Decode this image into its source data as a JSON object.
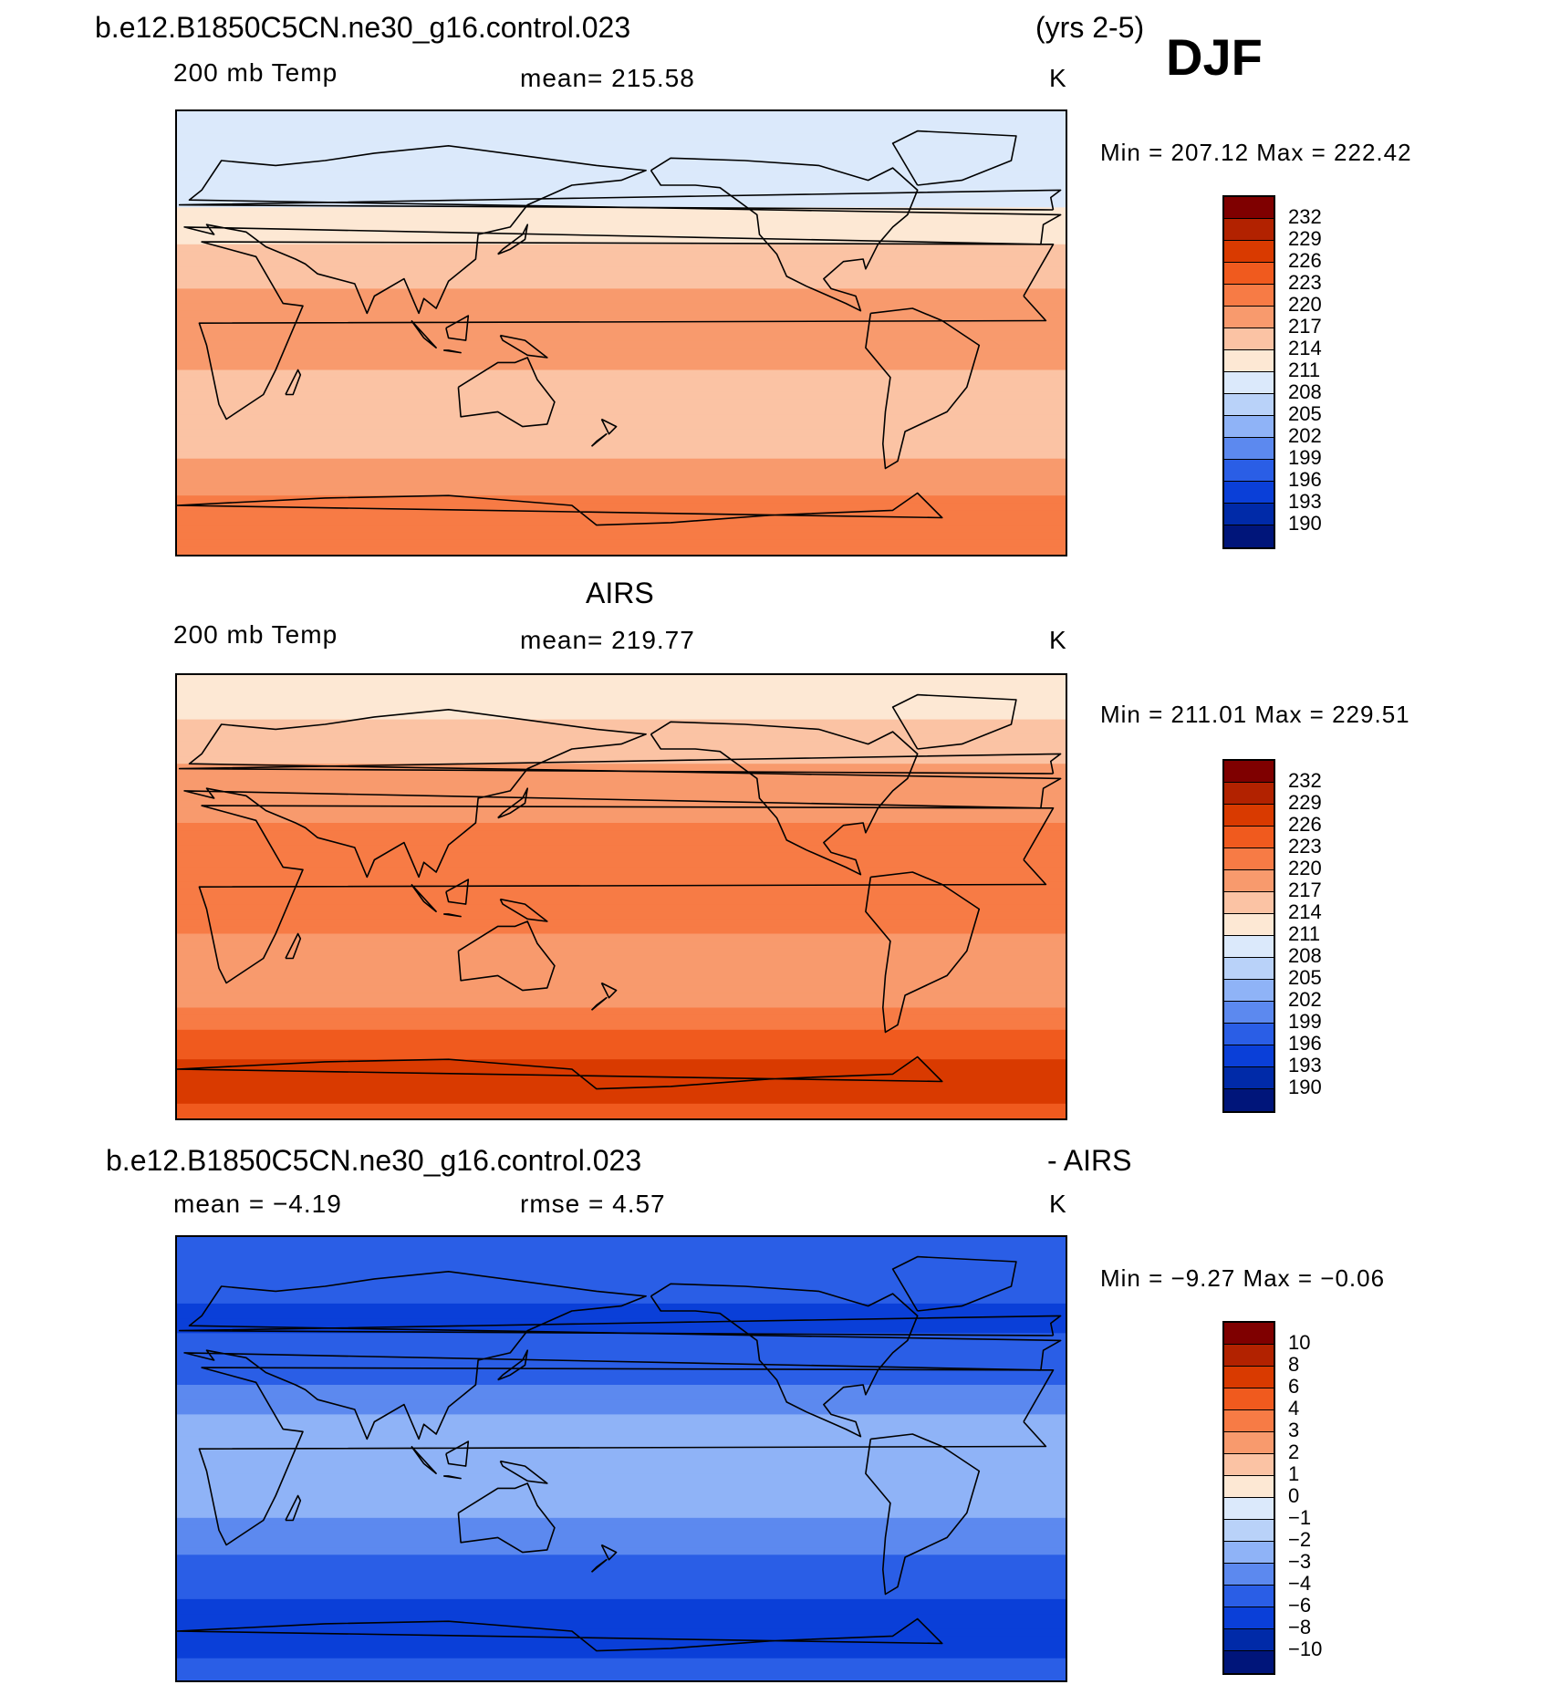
{
  "figure": {
    "case_title": "b.e12.B1850C5CN.ne30_g16.control.023",
    "years": "(yrs 2-5)",
    "season": "DJF"
  },
  "panels": [
    {
      "id": "model",
      "header": "",
      "variable": "200 mb Temp",
      "mean_text": "mean= 215.58",
      "units": "K",
      "minmax": "Min = 207.12 Max = 222.42",
      "colorbar_labels": [
        "232",
        "229",
        "226",
        "223",
        "220",
        "217",
        "214",
        "211",
        "208",
        "205",
        "202",
        "199",
        "196",
        "193",
        "190"
      ]
    },
    {
      "id": "obs",
      "header": "AIRS",
      "variable": "200 mb Temp",
      "mean_text": "mean= 219.77",
      "units": "K",
      "minmax": "Min = 211.01 Max = 229.51",
      "colorbar_labels": [
        "232",
        "229",
        "226",
        "223",
        "220",
        "217",
        "214",
        "211",
        "208",
        "205",
        "202",
        "199",
        "196",
        "193",
        "190"
      ]
    },
    {
      "id": "diff",
      "header_left": "b.e12.B1850C5CN.ne30_g16.control.023",
      "header_right": "- AIRS",
      "variable": "mean =   −4.19",
      "mean_text": "rmse =    4.57",
      "units": "K",
      "minmax": "Min =   −9.27 Max =   −0.06",
      "colorbar_labels": [
        "10",
        "8",
        "6",
        "4",
        "3",
        "2",
        "1",
        "0",
        "−1",
        "−2",
        "−3",
        "−4",
        "−6",
        "−8",
        "−10"
      ]
    }
  ],
  "colors": {
    "palette": [
      "#7f0000",
      "#b22200",
      "#d93a00",
      "#f05a1e",
      "#f77b45",
      "#f89a6d",
      "#fbc3a4",
      "#fde8d4",
      "#dbe9fb",
      "#b9d2f9",
      "#8fb3f7",
      "#5c89ef",
      "#2a5ee6",
      "#0a3fd8",
      "#002aa8",
      "#00157a"
    ]
  },
  "chart_data": [
    {
      "type": "heatmap",
      "title": "b.e12.B1850C5CN.ne30_g16.control.023 (yrs 2-5) DJF — 200 mb Temp",
      "variable": "200 mb Temp",
      "units": "K",
      "mean": 215.58,
      "min": 207.12,
      "max": 222.42,
      "contour_levels": [
        190,
        193,
        196,
        199,
        202,
        205,
        208,
        211,
        214,
        217,
        220,
        223,
        226,
        229,
        232
      ],
      "zonal_bands_k": [
        {
          "lat": 80,
          "value": 209.5
        },
        {
          "lat": 60,
          "value": 209.8
        },
        {
          "lat": 45,
          "value": 212
        },
        {
          "lat": 30,
          "value": 215.5
        },
        {
          "lat": 15,
          "value": 217.5
        },
        {
          "lat": 0,
          "value": 217.8
        },
        {
          "lat": -15,
          "value": 217.2
        },
        {
          "lat": -30,
          "value": 214
        },
        {
          "lat": -45,
          "value": 215.5
        },
        {
          "lat": -60,
          "value": 218.5
        },
        {
          "lat": -75,
          "value": 221.5
        },
        {
          "lat": -88,
          "value": 221.8
        }
      ]
    },
    {
      "type": "heatmap",
      "title": "AIRS — 200 mb Temp",
      "variable": "200 mb Temp",
      "units": "K",
      "mean": 219.77,
      "min": 211.01,
      "max": 229.51,
      "contour_levels": [
        190,
        193,
        196,
        199,
        202,
        205,
        208,
        211,
        214,
        217,
        220,
        223,
        226,
        229,
        232
      ],
      "zonal_bands_k": [
        {
          "lat": 80,
          "value": 213
        },
        {
          "lat": 60,
          "value": 216
        },
        {
          "lat": 45,
          "value": 218.5
        },
        {
          "lat": 30,
          "value": 220
        },
        {
          "lat": 15,
          "value": 220.5
        },
        {
          "lat": 0,
          "value": 220.5
        },
        {
          "lat": -15,
          "value": 220
        },
        {
          "lat": -30,
          "value": 218
        },
        {
          "lat": -45,
          "value": 219.5
        },
        {
          "lat": -60,
          "value": 224.5
        },
        {
          "lat": -70,
          "value": 227.5
        },
        {
          "lat": -80,
          "value": 226.5
        },
        {
          "lat": -88,
          "value": 225
        }
      ]
    },
    {
      "type": "heatmap",
      "title": "b.e12.B1850C5CN.ne30_g16.control.023 - AIRS",
      "variable": "200 mb Temp difference",
      "units": "K",
      "mean": -4.19,
      "rmse": 4.57,
      "min": -9.27,
      "max": -0.06,
      "contour_levels": [
        -10,
        -8,
        -6,
        -4,
        -3,
        -2,
        -1,
        0,
        1,
        2,
        3,
        4,
        6,
        8,
        10
      ],
      "zonal_bands_k": [
        {
          "lat": 85,
          "value": -5
        },
        {
          "lat": 70,
          "value": -5.5
        },
        {
          "lat": 55,
          "value": -6.5
        },
        {
          "lat": 40,
          "value": -5
        },
        {
          "lat": 25,
          "value": -3.5
        },
        {
          "lat": 10,
          "value": -2.5
        },
        {
          "lat": 0,
          "value": -2.5
        },
        {
          "lat": -15,
          "value": -2.5
        },
        {
          "lat": -30,
          "value": -3.5
        },
        {
          "lat": -45,
          "value": -4.5
        },
        {
          "lat": -60,
          "value": -6.5
        },
        {
          "lat": -72,
          "value": -7.5
        },
        {
          "lat": -88,
          "value": -5
        }
      ]
    }
  ]
}
